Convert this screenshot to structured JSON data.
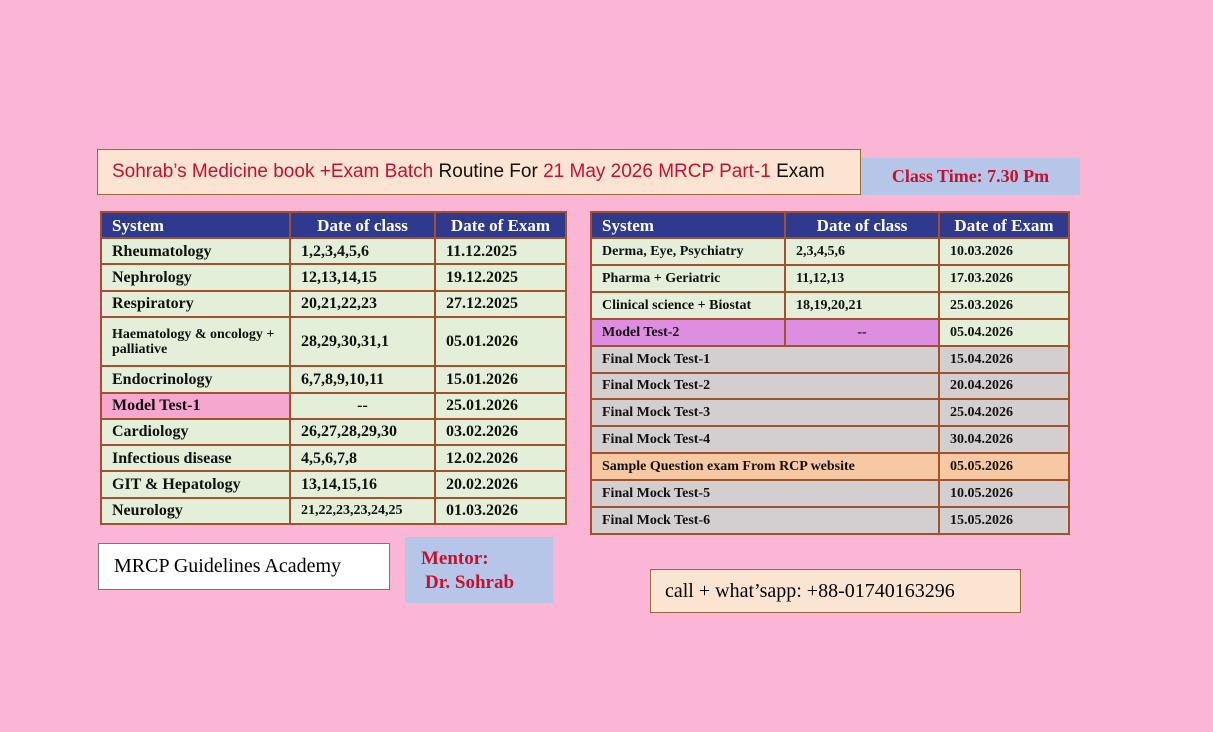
{
  "header": {
    "title": [
      {
        "text": "Sohrab’s Medicine book +Exam Batch ",
        "color": "red"
      },
      {
        "text": "Routine For ",
        "color": "black"
      },
      {
        "text": "21 May 2026 MRCP Part-1 ",
        "color": "red"
      },
      {
        "text": "Exam",
        "color": "black"
      }
    ],
    "class_time": "Class Time: 7.30 Pm"
  },
  "table_left": {
    "columns": [
      "System",
      "Date of class",
      "Date of Exam"
    ],
    "rows": [
      [
        "Rheumatology",
        "1,2,3,4,5,6",
        "11.12.2025"
      ],
      [
        "Nephrology",
        "12,13,14,15",
        "19.12.2025"
      ],
      [
        "Respiratory",
        "20,21,22,23",
        "27.12.2025"
      ],
      [
        "Haematology & oncology + palliative",
        "28,29,30,31,1",
        "05.01.2026"
      ],
      [
        "Endocrinology",
        "6,7,8,9,10,11",
        "15.01.2026"
      ],
      [
        "Model Test-1",
        "--",
        "25.01.2026"
      ],
      [
        "Cardiology",
        "26,27,28,29,30",
        "03.02.2026"
      ],
      [
        "Infectious disease",
        "4,5,6,7,8",
        "12.02.2026"
      ],
      [
        "GIT & Hepatology",
        "13,14,15,16",
        "20.02.2026"
      ],
      [
        "Neurology",
        "21,22,23,23,24,25",
        "01.03.2026"
      ]
    ]
  },
  "table_right": {
    "columns": [
      "System",
      "Date of class",
      "Date of Exam"
    ],
    "rows": [
      [
        "Derma, Eye, Psychiatry",
        "2,3,4,5,6",
        "10.03.2026"
      ],
      [
        "Pharma + Geriatric",
        "11,12,13",
        "17.03.2026"
      ],
      [
        "Clinical science + Biostat",
        "18,19,20,21",
        "25.03.2026"
      ],
      [
        "Model Test-2",
        "--",
        "05.04.2026"
      ],
      [
        "Final Mock Test-1",
        "15.04.2026"
      ],
      [
        "Final Mock Test-2",
        "20.04.2026"
      ],
      [
        "Final Mock Test-3",
        "25.04.2026"
      ],
      [
        "Final Mock Test-4",
        "30.04.2026"
      ],
      [
        "Sample Question exam From RCP website",
        "05.05.2026"
      ],
      [
        "Final Mock Test-5",
        "10.05.2026"
      ],
      [
        "Final Mock Test-6",
        "15.05.2026"
      ]
    ]
  },
  "footer": {
    "academy": "MRCP Guidelines Academy",
    "mentor": [
      "Mentor:",
      "Dr. Sohrab"
    ],
    "contact": "call + what’sapp: +88-01740163296"
  }
}
